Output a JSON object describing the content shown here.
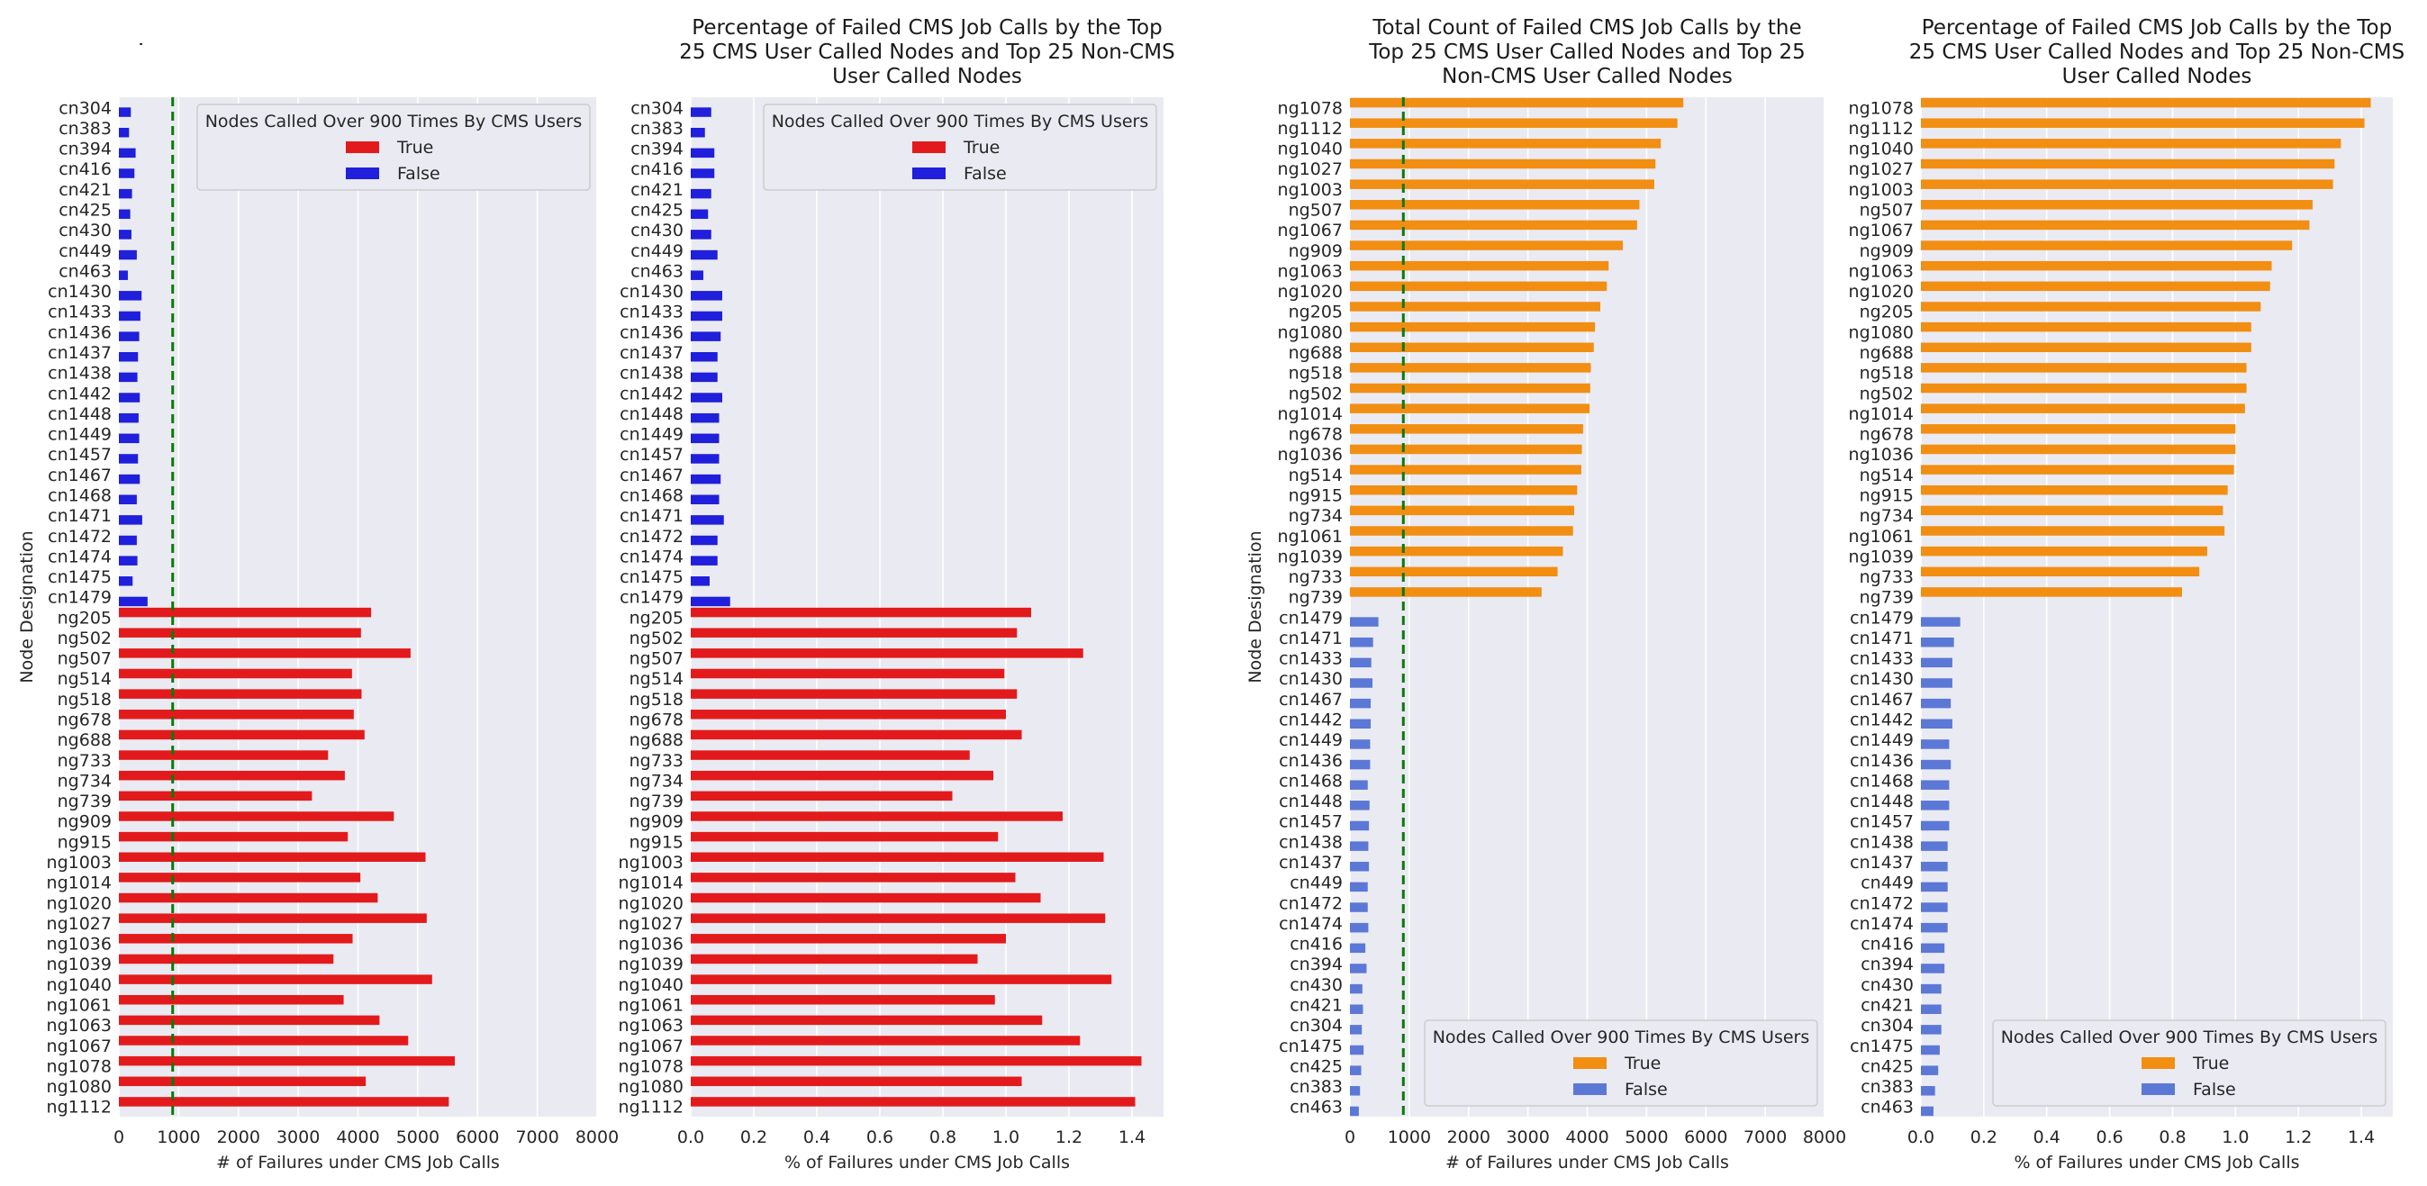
{
  "shared": {
    "ylabel": "Node Designation",
    "legend_title": "Nodes Called Over 900 Times By CMS Users",
    "legend_true": "True",
    "legend_false": "False",
    "title_count": "Total Count of Failed CMS Job Calls by the Top 25 CMS User Called Nodes and Top 25 Non-CMS User Called Nodes",
    "title_pct": "Percentage of Failed CMS Job Calls by the Top 25 CMS User Called Nodes and Top 25 Non-CMS User Called Nodes",
    "xlabel_count": "# of Failures under CMS Job Calls",
    "xlabel_pct": "% of Failures under CMS Job Calls",
    "threshold": 900,
    "colors": {
      "left_true": "#e31a1c",
      "left_false": "#1f1fdc",
      "right_true": "#f28e12",
      "right_false": "#5b78d6",
      "threshold_line": "#0a7a0a",
      "plot_bg": "#eaeaf2",
      "grid": "#ffffff"
    }
  },
  "chart_data": [
    {
      "type": "bar",
      "orientation": "horizontal",
      "title": "Total Count of Failed CMS Job Calls by the Top 25 CMS User Called Nodes and Top 25 Non-CMS User Called Nodes",
      "xlabel": "# of Failures under CMS Job Calls",
      "ylabel": "Node Designation",
      "xlim": [
        0,
        8000
      ],
      "xticks": [
        0,
        1000,
        2000,
        3000,
        4000,
        5000,
        6000,
        7000,
        8000
      ],
      "xtick_labels": [
        "0",
        "1000",
        "2000",
        "3000",
        "4000",
        "5000",
        "6000",
        "7000",
        "8000"
      ],
      "threshold_line": 900,
      "legend_position": "top",
      "grid": true,
      "categories": [
        "cn304",
        "cn383",
        "cn394",
        "cn416",
        "cn421",
        "cn425",
        "cn430",
        "cn449",
        "cn463",
        "cn1430",
        "cn1433",
        "cn1436",
        "cn1437",
        "cn1438",
        "cn1442",
        "cn1448",
        "cn1449",
        "cn1457",
        "cn1467",
        "cn1468",
        "cn1471",
        "cn1472",
        "cn1474",
        "cn1475",
        "cn1479",
        "ng205",
        "ng502",
        "ng507",
        "ng514",
        "ng518",
        "ng678",
        "ng688",
        "ng733",
        "ng734",
        "ng739",
        "ng909",
        "ng915",
        "ng1003",
        "ng1014",
        "ng1020",
        "ng1027",
        "ng1036",
        "ng1039",
        "ng1040",
        "ng1061",
        "ng1063",
        "ng1067",
        "ng1078",
        "ng1080",
        "ng1112"
      ],
      "values": [
        200,
        170,
        280,
        260,
        220,
        190,
        210,
        300,
        150,
        380,
        360,
        340,
        320,
        310,
        350,
        330,
        340,
        320,
        350,
        300,
        390,
        300,
        310,
        230,
        480,
        4220,
        4050,
        4880,
        3900,
        4060,
        3930,
        4110,
        3500,
        3780,
        3230,
        4600,
        3830,
        5130,
        4040,
        4330,
        5150,
        3910,
        3590,
        5240,
        3760,
        4360,
        4840,
        5620,
        4130,
        5520
      ],
      "series_flags": [
        false,
        false,
        false,
        false,
        false,
        false,
        false,
        false,
        false,
        false,
        false,
        false,
        false,
        false,
        false,
        false,
        false,
        false,
        false,
        false,
        false,
        false,
        false,
        false,
        false,
        true,
        true,
        true,
        true,
        true,
        true,
        true,
        true,
        true,
        true,
        true,
        true,
        true,
        true,
        true,
        true,
        true,
        true,
        true,
        true,
        true,
        true,
        true,
        true,
        true
      ]
    },
    {
      "type": "bar",
      "orientation": "horizontal",
      "title": "Percentage of Failed CMS Job Calls by the Top 25 CMS User Called Nodes and Top 25 Non-CMS User Called Nodes",
      "xlabel": "% of Failures under CMS Job Calls",
      "xlim": [
        0,
        1.5
      ],
      "xticks": [
        0,
        0.2,
        0.4,
        0.6,
        0.8,
        1.0,
        1.2,
        1.4
      ],
      "xtick_labels": [
        "0.0",
        "0.2",
        "0.4",
        "0.6",
        "0.8",
        "1.0",
        "1.2",
        "1.4"
      ],
      "legend_position": "top",
      "grid": true,
      "categories": [
        "cn304",
        "cn383",
        "cn394",
        "cn416",
        "cn421",
        "cn425",
        "cn430",
        "cn449",
        "cn463",
        "cn1430",
        "cn1433",
        "cn1436",
        "cn1437",
        "cn1438",
        "cn1442",
        "cn1448",
        "cn1449",
        "cn1457",
        "cn1467",
        "cn1468",
        "cn1471",
        "cn1472",
        "cn1474",
        "cn1475",
        "cn1479",
        "ng205",
        "ng502",
        "ng507",
        "ng514",
        "ng518",
        "ng678",
        "ng688",
        "ng733",
        "ng734",
        "ng739",
        "ng909",
        "ng915",
        "ng1003",
        "ng1014",
        "ng1020",
        "ng1027",
        "ng1036",
        "ng1039",
        "ng1040",
        "ng1061",
        "ng1063",
        "ng1067",
        "ng1078",
        "ng1080",
        "ng1112"
      ],
      "values": [
        0.065,
        0.045,
        0.075,
        0.075,
        0.065,
        0.055,
        0.065,
        0.085,
        0.04,
        0.1,
        0.1,
        0.095,
        0.085,
        0.085,
        0.1,
        0.09,
        0.09,
        0.09,
        0.095,
        0.09,
        0.105,
        0.085,
        0.085,
        0.06,
        0.125,
        1.08,
        1.035,
        1.245,
        0.995,
        1.035,
        1.0,
        1.05,
        0.885,
        0.96,
        0.83,
        1.18,
        0.975,
        1.31,
        1.03,
        1.11,
        1.315,
        1.0,
        0.91,
        1.335,
        0.965,
        1.115,
        1.235,
        1.43,
        1.05,
        1.41
      ],
      "series_flags": [
        false,
        false,
        false,
        false,
        false,
        false,
        false,
        false,
        false,
        false,
        false,
        false,
        false,
        false,
        false,
        false,
        false,
        false,
        false,
        false,
        false,
        false,
        false,
        false,
        false,
        true,
        true,
        true,
        true,
        true,
        true,
        true,
        true,
        true,
        true,
        true,
        true,
        true,
        true,
        true,
        true,
        true,
        true,
        true,
        true,
        true,
        true,
        true,
        true,
        true
      ]
    },
    {
      "type": "bar",
      "orientation": "horizontal",
      "title": "Total Count of Failed CMS Job Calls by the Top 25 CMS User Called Nodes and Top 25 Non-CMS User Called Nodes",
      "xlabel": "# of Failures under CMS Job Calls",
      "ylabel": "Node Designation",
      "xlim": [
        0,
        8000
      ],
      "xticks": [
        0,
        1000,
        2000,
        3000,
        4000,
        5000,
        6000,
        7000,
        8000
      ],
      "xtick_labels": [
        "0",
        "1000",
        "2000",
        "3000",
        "4000",
        "5000",
        "6000",
        "7000",
        "8000"
      ],
      "threshold_line": 900,
      "legend_position": "bottom-right",
      "grid": true,
      "categories": [
        "ng1078",
        "ng1112",
        "ng1040",
        "ng1027",
        "ng1003",
        "ng507",
        "ng1067",
        "ng909",
        "ng1063",
        "ng1020",
        "ng205",
        "ng1080",
        "ng688",
        "ng518",
        "ng502",
        "ng1014",
        "ng678",
        "ng1036",
        "ng514",
        "ng915",
        "ng734",
        "ng1061",
        "ng1039",
        "ng733",
        "ng739",
        "cn1479",
        "cn1471",
        "cn1433",
        "cn1430",
        "cn1467",
        "cn1442",
        "cn1449",
        "cn1436",
        "cn1468",
        "cn1448",
        "cn1457",
        "cn1438",
        "cn1437",
        "cn449",
        "cn1472",
        "cn1474",
        "cn416",
        "cn394",
        "cn430",
        "cn421",
        "cn304",
        "cn1475",
        "cn425",
        "cn383",
        "cn463"
      ],
      "values": [
        5620,
        5520,
        5240,
        5150,
        5130,
        4880,
        4840,
        4600,
        4360,
        4330,
        4220,
        4130,
        4110,
        4060,
        4050,
        4040,
        3930,
        3910,
        3900,
        3830,
        3780,
        3760,
        3590,
        3500,
        3230,
        480,
        390,
        360,
        380,
        350,
        350,
        340,
        340,
        300,
        330,
        320,
        310,
        320,
        300,
        300,
        310,
        260,
        280,
        210,
        220,
        200,
        230,
        190,
        170,
        150
      ],
      "series_flags": [
        true,
        true,
        true,
        true,
        true,
        true,
        true,
        true,
        true,
        true,
        true,
        true,
        true,
        true,
        true,
        true,
        true,
        true,
        true,
        true,
        true,
        true,
        true,
        true,
        true,
        false,
        false,
        false,
        false,
        false,
        false,
        false,
        false,
        false,
        false,
        false,
        false,
        false,
        false,
        false,
        false,
        false,
        false,
        false,
        false,
        false,
        false,
        false,
        false,
        false
      ]
    },
    {
      "type": "bar",
      "orientation": "horizontal",
      "title": "Percentage of Failed CMS Job Calls by the Top 25 CMS User Called Nodes and Top 25 Non-CMS User Called Nodes",
      "xlabel": "% of Failures under CMS Job Calls",
      "xlim": [
        0,
        1.5
      ],
      "xticks": [
        0,
        0.2,
        0.4,
        0.6,
        0.8,
        1.0,
        1.2,
        1.4
      ],
      "xtick_labels": [
        "0.0",
        "0.2",
        "0.4",
        "0.6",
        "0.8",
        "1.0",
        "1.2",
        "1.4"
      ],
      "legend_position": "bottom-right",
      "grid": true,
      "categories": [
        "ng1078",
        "ng1112",
        "ng1040",
        "ng1027",
        "ng1003",
        "ng507",
        "ng1067",
        "ng909",
        "ng1063",
        "ng1020",
        "ng205",
        "ng1080",
        "ng688",
        "ng518",
        "ng502",
        "ng1014",
        "ng678",
        "ng1036",
        "ng514",
        "ng915",
        "ng734",
        "ng1061",
        "ng1039",
        "ng733",
        "ng739",
        "cn1479",
        "cn1471",
        "cn1433",
        "cn1430",
        "cn1467",
        "cn1442",
        "cn1449",
        "cn1436",
        "cn1468",
        "cn1448",
        "cn1457",
        "cn1438",
        "cn1437",
        "cn449",
        "cn1472",
        "cn1474",
        "cn416",
        "cn394",
        "cn430",
        "cn421",
        "cn304",
        "cn1475",
        "cn425",
        "cn383",
        "cn463"
      ],
      "values": [
        1.43,
        1.41,
        1.335,
        1.315,
        1.31,
        1.245,
        1.235,
        1.18,
        1.115,
        1.11,
        1.08,
        1.05,
        1.05,
        1.035,
        1.035,
        1.03,
        1.0,
        1.0,
        0.995,
        0.975,
        0.96,
        0.965,
        0.91,
        0.885,
        0.83,
        0.125,
        0.105,
        0.1,
        0.1,
        0.095,
        0.1,
        0.09,
        0.095,
        0.09,
        0.09,
        0.09,
        0.085,
        0.085,
        0.085,
        0.085,
        0.085,
        0.075,
        0.075,
        0.065,
        0.065,
        0.065,
        0.06,
        0.055,
        0.045,
        0.04
      ],
      "series_flags": [
        true,
        true,
        true,
        true,
        true,
        true,
        true,
        true,
        true,
        true,
        true,
        true,
        true,
        true,
        true,
        true,
        true,
        true,
        true,
        true,
        true,
        true,
        true,
        true,
        true,
        false,
        false,
        false,
        false,
        false,
        false,
        false,
        false,
        false,
        false,
        false,
        false,
        false,
        false,
        false,
        false,
        false,
        false,
        false,
        false,
        false,
        false,
        false,
        false,
        false
      ]
    }
  ]
}
